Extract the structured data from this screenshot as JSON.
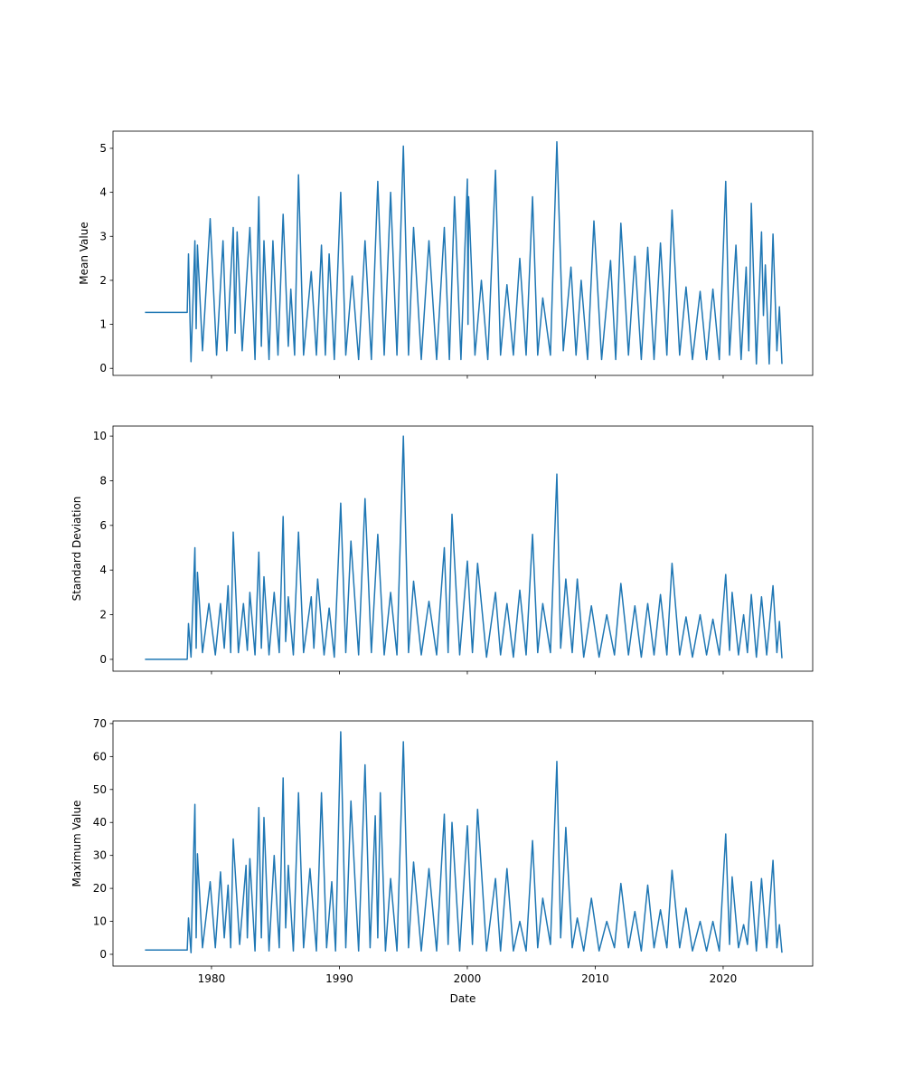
{
  "chart_data": [
    {
      "type": "line",
      "ylabel": "Mean Value",
      "xlabel": "",
      "xlim": [
        1972.3,
        2027.0
      ],
      "ylim": [
        -0.16,
        5.39
      ],
      "yticks": [
        0,
        1,
        2,
        3,
        4,
        5
      ],
      "xticks": [
        1980,
        1990,
        2000,
        2010,
        2020
      ],
      "show_xticklabels": false,
      "color": "#1f77b4",
      "grid": false,
      "points": [
        [
          1974.8,
          1.27
        ],
        [
          1978.1,
          1.27
        ],
        [
          1978.2,
          2.6
        ],
        [
          1978.4,
          0.15
        ],
        [
          1978.7,
          2.9
        ],
        [
          1978.8,
          0.9
        ],
        [
          1978.9,
          2.8
        ],
        [
          1979.3,
          0.4
        ],
        [
          1979.9,
          3.4
        ],
        [
          1980.4,
          0.3
        ],
        [
          1980.9,
          2.9
        ],
        [
          1981.2,
          0.4
        ],
        [
          1981.7,
          3.2
        ],
        [
          1981.85,
          0.8
        ],
        [
          1982.0,
          3.1
        ],
        [
          1982.4,
          0.4
        ],
        [
          1983.0,
          3.2
        ],
        [
          1983.4,
          0.2
        ],
        [
          1983.7,
          3.9
        ],
        [
          1983.9,
          0.5
        ],
        [
          1984.1,
          2.9
        ],
        [
          1984.5,
          0.2
        ],
        [
          1984.8,
          2.9
        ],
        [
          1985.2,
          0.3
        ],
        [
          1985.6,
          3.5
        ],
        [
          1986.0,
          0.5
        ],
        [
          1986.2,
          1.8
        ],
        [
          1986.5,
          0.3
        ],
        [
          1986.8,
          4.4
        ],
        [
          1987.2,
          0.3
        ],
        [
          1987.8,
          2.2
        ],
        [
          1988.2,
          0.3
        ],
        [
          1988.6,
          2.8
        ],
        [
          1988.9,
          0.3
        ],
        [
          1989.2,
          2.6
        ],
        [
          1989.6,
          0.2
        ],
        [
          1990.1,
          4.0
        ],
        [
          1990.5,
          0.3
        ],
        [
          1991.0,
          2.1
        ],
        [
          1991.5,
          0.2
        ],
        [
          1992.0,
          2.9
        ],
        [
          1992.5,
          0.2
        ],
        [
          1993.0,
          4.25
        ],
        [
          1993.5,
          0.3
        ],
        [
          1994.0,
          4.0
        ],
        [
          1994.5,
          0.3
        ],
        [
          1995.0,
          5.05
        ],
        [
          1995.4,
          0.3
        ],
        [
          1995.8,
          3.2
        ],
        [
          1996.4,
          0.2
        ],
        [
          1997.0,
          2.9
        ],
        [
          1997.6,
          0.2
        ],
        [
          1998.2,
          3.2
        ],
        [
          1998.6,
          0.2
        ],
        [
          1999.0,
          3.9
        ],
        [
          1999.5,
          0.2
        ],
        [
          2000.0,
          4.3
        ],
        [
          2000.05,
          1.0
        ],
        [
          2000.1,
          3.9
        ],
        [
          2000.6,
          0.3
        ],
        [
          2001.1,
          2.0
        ],
        [
          2001.6,
          0.2
        ],
        [
          2002.2,
          4.5
        ],
        [
          2002.6,
          0.3
        ],
        [
          2003.1,
          1.9
        ],
        [
          2003.6,
          0.3
        ],
        [
          2004.1,
          2.5
        ],
        [
          2004.6,
          0.3
        ],
        [
          2005.1,
          3.9
        ],
        [
          2005.5,
          0.3
        ],
        [
          2005.9,
          1.6
        ],
        [
          2006.5,
          0.3
        ],
        [
          2007.0,
          5.15
        ],
        [
          2007.5,
          0.4
        ],
        [
          2008.1,
          2.3
        ],
        [
          2008.5,
          0.3
        ],
        [
          2008.9,
          2.0
        ],
        [
          2009.4,
          0.2
        ],
        [
          2009.9,
          3.35
        ],
        [
          2010.5,
          0.2
        ],
        [
          2011.2,
          2.45
        ],
        [
          2011.6,
          0.2
        ],
        [
          2012.0,
          3.3
        ],
        [
          2012.6,
          0.3
        ],
        [
          2013.1,
          2.55
        ],
        [
          2013.6,
          0.2
        ],
        [
          2014.1,
          2.75
        ],
        [
          2014.6,
          0.2
        ],
        [
          2015.1,
          2.85
        ],
        [
          2015.6,
          0.3
        ],
        [
          2016.0,
          3.6
        ],
        [
          2016.6,
          0.3
        ],
        [
          2017.1,
          1.85
        ],
        [
          2017.6,
          0.2
        ],
        [
          2018.2,
          1.75
        ],
        [
          2018.7,
          0.2
        ],
        [
          2019.2,
          1.8
        ],
        [
          2019.7,
          0.2
        ],
        [
          2020.2,
          4.25
        ],
        [
          2020.5,
          0.3
        ],
        [
          2021.0,
          2.8
        ],
        [
          2021.4,
          0.2
        ],
        [
          2021.8,
          2.3
        ],
        [
          2022.0,
          0.4
        ],
        [
          2022.2,
          3.75
        ],
        [
          2022.6,
          0.1
        ],
        [
          2023.0,
          3.1
        ],
        [
          2023.15,
          1.2
        ],
        [
          2023.3,
          2.35
        ],
        [
          2023.6,
          0.1
        ],
        [
          2023.9,
          3.05
        ],
        [
          2024.2,
          0.4
        ],
        [
          2024.4,
          1.4
        ],
        [
          2024.6,
          0.1
        ]
      ]
    },
    {
      "type": "line",
      "ylabel": "Standard Deviation",
      "xlabel": "",
      "xlim": [
        1972.3,
        2027.0
      ],
      "ylim": [
        -0.53,
        10.45
      ],
      "yticks": [
        0,
        2,
        4,
        6,
        8,
        10
      ],
      "xticks": [
        1980,
        1990,
        2000,
        2010,
        2020
      ],
      "show_xticklabels": false,
      "color": "#1f77b4",
      "grid": false,
      "points": [
        [
          1974.8,
          0
        ],
        [
          1978.1,
          0
        ],
        [
          1978.2,
          1.6
        ],
        [
          1978.4,
          0.1
        ],
        [
          1978.7,
          5.0
        ],
        [
          1978.8,
          0.5
        ],
        [
          1978.9,
          3.9
        ],
        [
          1979.3,
          0.3
        ],
        [
          1979.8,
          2.5
        ],
        [
          1980.3,
          0.2
        ],
        [
          1980.7,
          2.5
        ],
        [
          1981.0,
          0.5
        ],
        [
          1981.3,
          3.3
        ],
        [
          1981.5,
          0.3
        ],
        [
          1981.7,
          5.7
        ],
        [
          1982.1,
          0.3
        ],
        [
          1982.5,
          2.5
        ],
        [
          1982.8,
          0.4
        ],
        [
          1983.0,
          3.0
        ],
        [
          1983.4,
          0.2
        ],
        [
          1983.7,
          4.8
        ],
        [
          1983.9,
          0.5
        ],
        [
          1984.1,
          3.7
        ],
        [
          1984.5,
          0.2
        ],
        [
          1984.9,
          3.0
        ],
        [
          1985.3,
          0.3
        ],
        [
          1985.6,
          6.4
        ],
        [
          1985.8,
          0.8
        ],
        [
          1986.0,
          2.8
        ],
        [
          1986.4,
          0.2
        ],
        [
          1986.8,
          5.7
        ],
        [
          1987.2,
          0.3
        ],
        [
          1987.8,
          2.8
        ],
        [
          1988.0,
          0.5
        ],
        [
          1988.3,
          3.6
        ],
        [
          1988.8,
          0.2
        ],
        [
          1989.2,
          2.3
        ],
        [
          1989.6,
          0.1
        ],
        [
          1990.1,
          7.0
        ],
        [
          1990.5,
          0.3
        ],
        [
          1990.9,
          5.3
        ],
        [
          1991.5,
          0.2
        ],
        [
          1992.0,
          7.2
        ],
        [
          1992.5,
          0.3
        ],
        [
          1993.0,
          5.6
        ],
        [
          1993.5,
          0.2
        ],
        [
          1994.0,
          3.0
        ],
        [
          1994.5,
          0.2
        ],
        [
          1995.0,
          10.0
        ],
        [
          1995.4,
          0.3
        ],
        [
          1995.8,
          3.5
        ],
        [
          1996.4,
          0.2
        ],
        [
          1997.0,
          2.6
        ],
        [
          1997.6,
          0.2
        ],
        [
          1998.2,
          5.0
        ],
        [
          1998.5,
          0.3
        ],
        [
          1998.8,
          6.5
        ],
        [
          1999.4,
          0.2
        ],
        [
          2000.0,
          4.4
        ],
        [
          2000.4,
          0.3
        ],
        [
          2000.8,
          4.3
        ],
        [
          2001.5,
          0.1
        ],
        [
          2002.2,
          3.0
        ],
        [
          2002.6,
          0.2
        ],
        [
          2003.1,
          2.5
        ],
        [
          2003.6,
          0.1
        ],
        [
          2004.1,
          3.1
        ],
        [
          2004.6,
          0.2
        ],
        [
          2005.1,
          5.6
        ],
        [
          2005.5,
          0.3
        ],
        [
          2005.9,
          2.5
        ],
        [
          2006.5,
          0.3
        ],
        [
          2007.0,
          8.3
        ],
        [
          2007.3,
          0.5
        ],
        [
          2007.7,
          3.6
        ],
        [
          2008.2,
          0.3
        ],
        [
          2008.6,
          3.6
        ],
        [
          2009.1,
          0.1
        ],
        [
          2009.7,
          2.4
        ],
        [
          2010.3,
          0.1
        ],
        [
          2010.9,
          2.0
        ],
        [
          2011.5,
          0.2
        ],
        [
          2012.0,
          3.4
        ],
        [
          2012.6,
          0.2
        ],
        [
          2013.1,
          2.4
        ],
        [
          2013.6,
          0.1
        ],
        [
          2014.1,
          2.5
        ],
        [
          2014.6,
          0.2
        ],
        [
          2015.1,
          2.9
        ],
        [
          2015.6,
          0.2
        ],
        [
          2016.0,
          4.3
        ],
        [
          2016.6,
          0.2
        ],
        [
          2017.1,
          1.9
        ],
        [
          2017.6,
          0.1
        ],
        [
          2018.2,
          2.0
        ],
        [
          2018.7,
          0.2
        ],
        [
          2019.2,
          1.8
        ],
        [
          2019.7,
          0.2
        ],
        [
          2020.2,
          3.8
        ],
        [
          2020.5,
          0.4
        ],
        [
          2020.7,
          3.0
        ],
        [
          2021.2,
          0.2
        ],
        [
          2021.6,
          2.0
        ],
        [
          2021.9,
          0.3
        ],
        [
          2022.2,
          2.9
        ],
        [
          2022.6,
          0.1
        ],
        [
          2023.0,
          2.8
        ],
        [
          2023.4,
          0.2
        ],
        [
          2023.9,
          3.3
        ],
        [
          2024.2,
          0.3
        ],
        [
          2024.4,
          1.7
        ],
        [
          2024.6,
          0.05
        ]
      ]
    },
    {
      "type": "line",
      "ylabel": "Maximum Value",
      "xlabel": "Date",
      "xlim": [
        1972.3,
        2027.0
      ],
      "ylim": [
        -3.57,
        70.8
      ],
      "yticks": [
        0,
        10,
        20,
        30,
        40,
        50,
        60,
        70
      ],
      "xticks": [
        1980,
        1990,
        2000,
        2010,
        2020
      ],
      "show_xticklabels": true,
      "color": "#1f77b4",
      "grid": false,
      "points": [
        [
          1974.8,
          1.3
        ],
        [
          1978.1,
          1.3
        ],
        [
          1978.2,
          11
        ],
        [
          1978.4,
          0.5
        ],
        [
          1978.7,
          45.5
        ],
        [
          1978.8,
          5
        ],
        [
          1978.9,
          30.5
        ],
        [
          1979.3,
          2
        ],
        [
          1979.9,
          22
        ],
        [
          1980.3,
          2
        ],
        [
          1980.7,
          25
        ],
        [
          1981.0,
          5
        ],
        [
          1981.3,
          21
        ],
        [
          1981.5,
          2
        ],
        [
          1981.7,
          35
        ],
        [
          1982.2,
          3
        ],
        [
          1982.7,
          27
        ],
        [
          1982.8,
          5
        ],
        [
          1983.0,
          29
        ],
        [
          1983.4,
          1
        ],
        [
          1983.7,
          44.5
        ],
        [
          1983.9,
          5
        ],
        [
          1984.1,
          41.5
        ],
        [
          1984.5,
          1
        ],
        [
          1984.9,
          30
        ],
        [
          1985.3,
          2
        ],
        [
          1985.6,
          53.5
        ],
        [
          1985.8,
          8
        ],
        [
          1986.0,
          27
        ],
        [
          1986.4,
          1
        ],
        [
          1986.8,
          49
        ],
        [
          1987.2,
          2
        ],
        [
          1987.7,
          26
        ],
        [
          1988.2,
          1
        ],
        [
          1988.6,
          49
        ],
        [
          1989.0,
          2
        ],
        [
          1989.4,
          22
        ],
        [
          1989.7,
          1
        ],
        [
          1990.1,
          67.5
        ],
        [
          1990.5,
          2
        ],
        [
          1990.9,
          46.5
        ],
        [
          1991.5,
          1
        ],
        [
          1992.0,
          57.5
        ],
        [
          1992.4,
          2
        ],
        [
          1992.8,
          42
        ],
        [
          1993.0,
          5
        ],
        [
          1993.2,
          49
        ],
        [
          1993.6,
          1
        ],
        [
          1994.0,
          23
        ],
        [
          1994.5,
          1
        ],
        [
          1995.0,
          64.5
        ],
        [
          1995.4,
          2
        ],
        [
          1995.8,
          28
        ],
        [
          1996.4,
          1
        ],
        [
          1997.0,
          26
        ],
        [
          1997.6,
          1
        ],
        [
          1998.2,
          42.5
        ],
        [
          1998.5,
          3
        ],
        [
          1998.8,
          40
        ],
        [
          1999.4,
          1
        ],
        [
          2000.0,
          39
        ],
        [
          2000.4,
          3
        ],
        [
          2000.8,
          44
        ],
        [
          2001.5,
          1
        ],
        [
          2002.2,
          23
        ],
        [
          2002.6,
          1
        ],
        [
          2003.1,
          26
        ],
        [
          2003.6,
          1
        ],
        [
          2004.1,
          10
        ],
        [
          2004.6,
          1
        ],
        [
          2005.1,
          34.5
        ],
        [
          2005.5,
          2
        ],
        [
          2005.9,
          17
        ],
        [
          2006.5,
          3
        ],
        [
          2007.0,
          58.5
        ],
        [
          2007.3,
          5
        ],
        [
          2007.7,
          38.5
        ],
        [
          2008.2,
          2
        ],
        [
          2008.6,
          11
        ],
        [
          2009.1,
          1
        ],
        [
          2009.7,
          17
        ],
        [
          2010.3,
          1
        ],
        [
          2010.9,
          10
        ],
        [
          2011.5,
          2
        ],
        [
          2012.0,
          21.5
        ],
        [
          2012.6,
          2
        ],
        [
          2013.1,
          13
        ],
        [
          2013.6,
          1
        ],
        [
          2014.1,
          21
        ],
        [
          2014.6,
          2
        ],
        [
          2015.1,
          13.5
        ],
        [
          2015.6,
          2
        ],
        [
          2016.0,
          25.5
        ],
        [
          2016.6,
          2
        ],
        [
          2017.1,
          14
        ],
        [
          2017.6,
          1
        ],
        [
          2018.2,
          10
        ],
        [
          2018.7,
          1
        ],
        [
          2019.2,
          10
        ],
        [
          2019.7,
          1
        ],
        [
          2020.2,
          36.5
        ],
        [
          2020.5,
          3
        ],
        [
          2020.7,
          23.5
        ],
        [
          2021.2,
          2
        ],
        [
          2021.6,
          9
        ],
        [
          2021.9,
          3
        ],
        [
          2022.2,
          22
        ],
        [
          2022.6,
          1
        ],
        [
          2023.0,
          23
        ],
        [
          2023.4,
          2
        ],
        [
          2023.9,
          28.5
        ],
        [
          2024.2,
          2
        ],
        [
          2024.4,
          9
        ],
        [
          2024.6,
          0.5
        ]
      ]
    }
  ]
}
